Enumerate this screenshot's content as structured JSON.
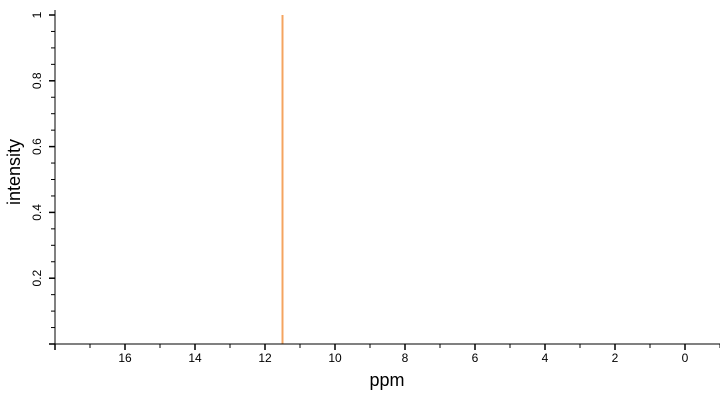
{
  "chart_data": {
    "type": "line",
    "title": "",
    "xlabel": "ppm",
    "ylabel": "intensity",
    "x_reversed": true,
    "xlim": [
      18,
      -1
    ],
    "ylim": [
      0,
      1
    ],
    "x_ticks": [
      16,
      14,
      12,
      10,
      8,
      6,
      4,
      2,
      0
    ],
    "x_tick_labels": [
      "16",
      "14",
      "12",
      "10",
      "8",
      "6",
      "4",
      "2",
      "0"
    ],
    "y_ticks": [
      0.2,
      0.4,
      0.6,
      0.8,
      1
    ],
    "y_tick_labels": [
      "0.2",
      "0.4",
      "0.6",
      "0.8",
      "1"
    ],
    "grid": false,
    "series": [
      {
        "color": "#f4a460",
        "peaks": [
          {
            "x": 11.5,
            "y": 1.0
          }
        ]
      }
    ]
  }
}
